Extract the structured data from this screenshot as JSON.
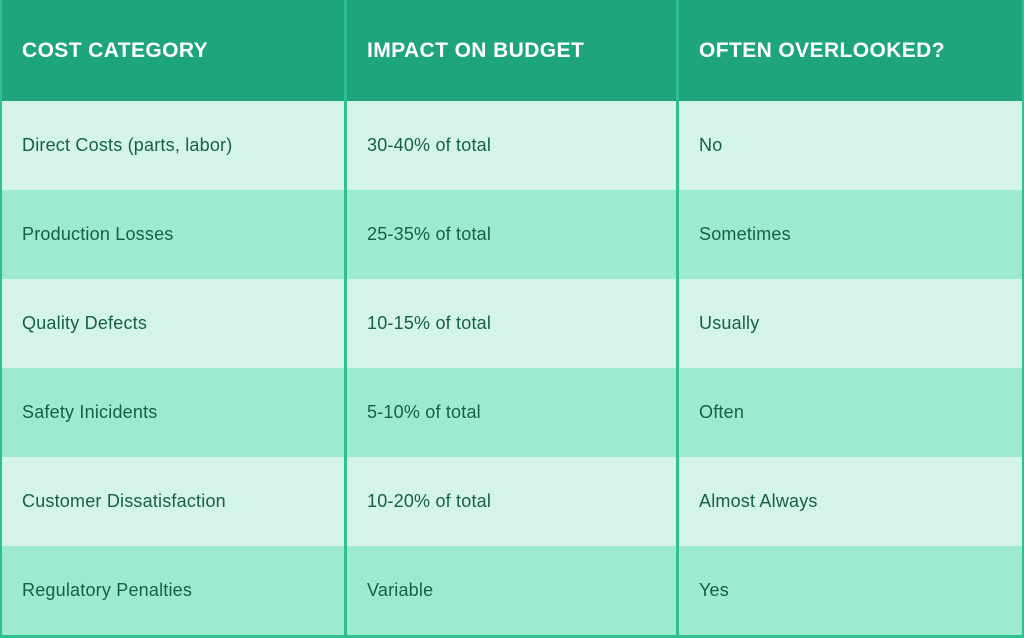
{
  "table": {
    "columns": [
      {
        "label": "COST CATEGORY"
      },
      {
        "label": "IMPACT ON BUDGET"
      },
      {
        "label": "OFTEN OVERLOOKED?"
      }
    ],
    "rows": [
      {
        "cost_category": "Direct Costs (parts, labor)",
        "impact_on_budget": "30-40% of total",
        "often_overlooked": "No"
      },
      {
        "cost_category": "Production Losses",
        "impact_on_budget": "25-35% of total",
        "often_overlooked": "Sometimes"
      },
      {
        "cost_category": "Quality Defects",
        "impact_on_budget": "10-15% of total",
        "often_overlooked": "Usually"
      },
      {
        "cost_category": "Safety Inicidents",
        "impact_on_budget": "5-10% of total",
        "often_overlooked": "Often"
      },
      {
        "cost_category": "Customer Dissatisfaction",
        "impact_on_budget": "10-20% of total",
        "often_overlooked": "Almost Always"
      },
      {
        "cost_category": "Regulatory Penalties",
        "impact_on_budget": "Variable",
        "often_overlooked": "Yes"
      }
    ]
  },
  "colors": {
    "header_bg": "#1fa57d",
    "row_light": "#d5f4e8",
    "row_medium": "#9debcf",
    "border_green": "#2ebf92",
    "header_text": "#ffffff",
    "body_text": "#155f4a"
  }
}
